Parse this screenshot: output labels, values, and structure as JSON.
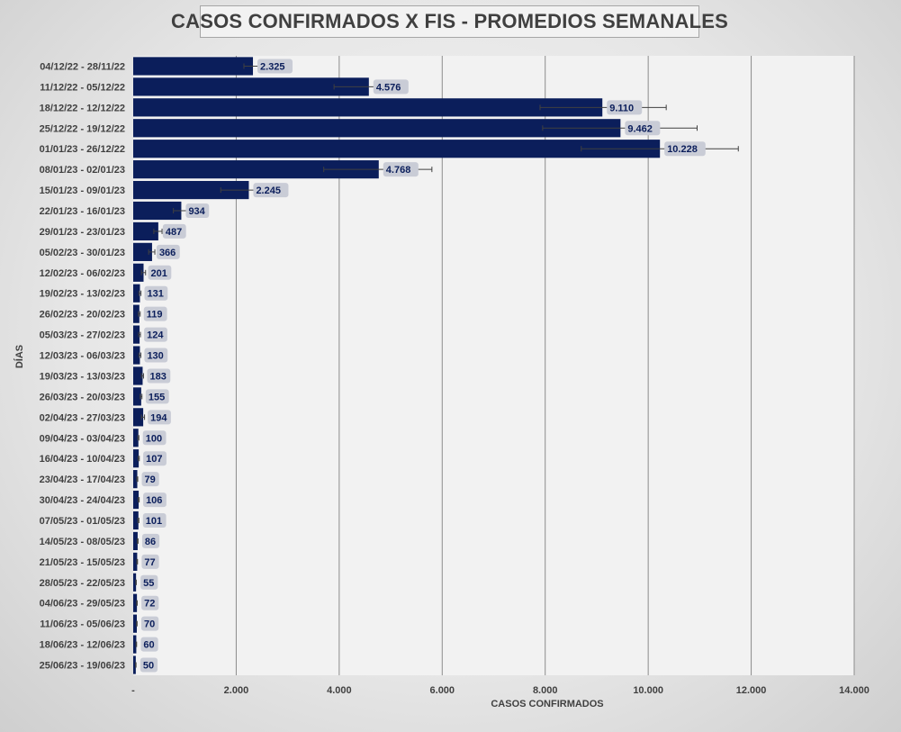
{
  "chart_data": {
    "type": "bar",
    "orientation": "horizontal",
    "title": "CASOS CONFIRMADOS X FIS - PROMEDIOS SEMANALES",
    "xlabel": "CASOS CONFIRMADOS",
    "ylabel": "DÍAS",
    "xlim": [
      0,
      14000
    ],
    "xticks": [
      "-",
      "2.000",
      "4.000",
      "6.000",
      "8.000",
      "10.000",
      "12.000",
      "14.000"
    ],
    "grid": "vertical",
    "bar_color": "#0b1e5b",
    "categories": [
      "04/12/22 - 28/11/22",
      "11/12/22 - 05/12/22",
      "18/12/22 - 12/12/22",
      "25/12/22 - 19/12/22",
      "01/01/23 - 26/12/22",
      "08/01/23 - 02/01/23",
      "15/01/23 - 09/01/23",
      "22/01/23 - 16/01/23",
      "29/01/23 - 23/01/23",
      "05/02/23 - 30/01/23",
      "12/02/23 - 06/02/23",
      "19/02/23 - 13/02/23",
      "26/02/23 - 20/02/23",
      "05/03/23 - 27/02/23",
      "12/03/23 - 06/03/23",
      "19/03/23 - 13/03/23",
      "26/03/23 - 20/03/23",
      "02/04/23 - 27/03/23",
      "09/04/23 - 03/04/23",
      "16/04/23 - 10/04/23",
      "23/04/23 - 17/04/23",
      "30/04/23 - 24/04/23",
      "07/05/23 - 01/05/23",
      "14/05/23 - 08/05/23",
      "21/05/23 - 15/05/23",
      "28/05/23 - 22/05/23",
      "04/06/23 - 29/05/23",
      "11/06/23 - 05/06/23",
      "18/06/23 - 12/06/23",
      "25/06/23 - 19/06/23"
    ],
    "values": [
      2325,
      4576,
      9110,
      9462,
      10228,
      4768,
      2245,
      934,
      487,
      366,
      201,
      131,
      119,
      124,
      130,
      183,
      155,
      194,
      100,
      107,
      79,
      106,
      101,
      86,
      77,
      55,
      72,
      70,
      60,
      50
    ],
    "labels": [
      "2.325",
      "4.576",
      "9.110",
      "9.462",
      "10.228",
      "4.768",
      "2.245",
      "934",
      "487",
      "366",
      "201",
      "131",
      "119",
      "124",
      "130",
      "183",
      "155",
      "194",
      "100",
      "107",
      "79",
      "106",
      "101",
      "86",
      "77",
      "55",
      "72",
      "70",
      "60",
      "50"
    ],
    "error_low": [
      2150,
      3900,
      7900,
      7950,
      8700,
      3700,
      1700,
      780,
      400,
      300,
      160,
      110,
      100,
      105,
      110,
      160,
      135,
      160,
      90,
      95,
      70,
      95,
      90,
      78,
      70,
      50,
      65,
      63,
      55,
      45
    ],
    "error_high": [
      2450,
      5250,
      10350,
      10950,
      11750,
      5800,
      2700,
      1050,
      560,
      420,
      240,
      150,
      135,
      140,
      148,
      200,
      170,
      220,
      110,
      118,
      88,
      116,
      110,
      94,
      84,
      60,
      78,
      76,
      66,
      55
    ]
  }
}
